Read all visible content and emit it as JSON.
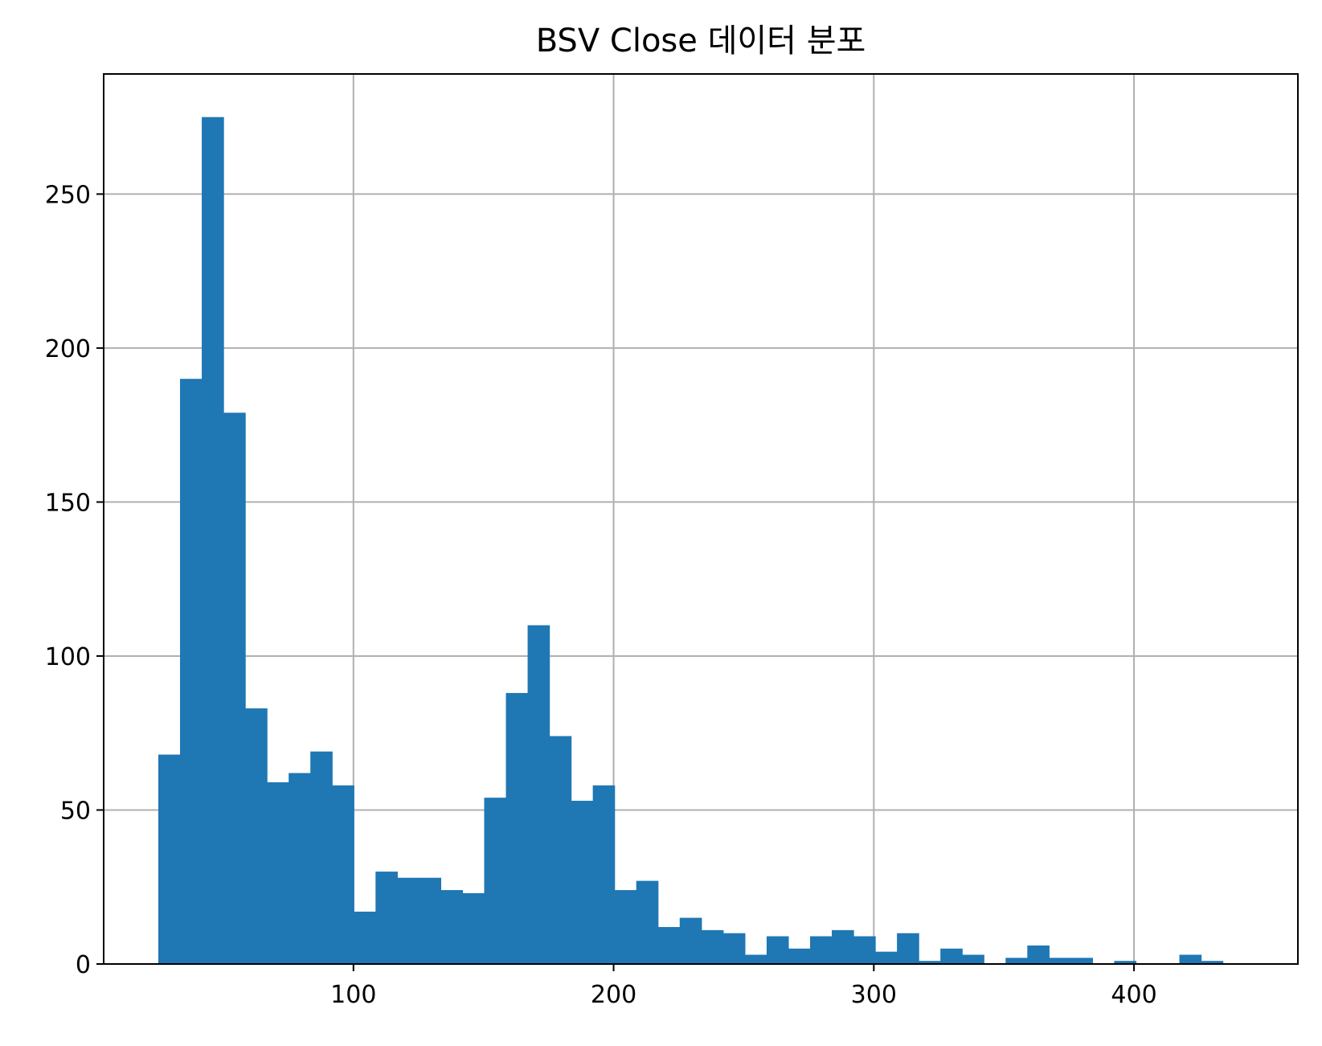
{
  "chart_data": {
    "type": "bar",
    "title": "BSV Close 데이터 분포",
    "xlabel": "",
    "ylabel": "",
    "xlim": [
      4,
      463
    ],
    "ylim": [
      0,
      289
    ],
    "grid": true,
    "bar_color": "#1f77b4",
    "grid_color": "#b0b0b0",
    "xticks": [
      100,
      200,
      300,
      400
    ],
    "yticks": [
      0,
      50,
      100,
      150,
      200,
      250
    ],
    "bin_start": 25,
    "bin_width": 8.35,
    "values": [
      68,
      190,
      275,
      179,
      83,
      59,
      62,
      69,
      58,
      17,
      30,
      28,
      28,
      24,
      23,
      54,
      88,
      110,
      74,
      53,
      58,
      24,
      27,
      12,
      15,
      11,
      10,
      3,
      9,
      5,
      9,
      11,
      9,
      4,
      10,
      1,
      5,
      3,
      0,
      2,
      6,
      2,
      2,
      0,
      1,
      0,
      0,
      3,
      1
    ]
  }
}
